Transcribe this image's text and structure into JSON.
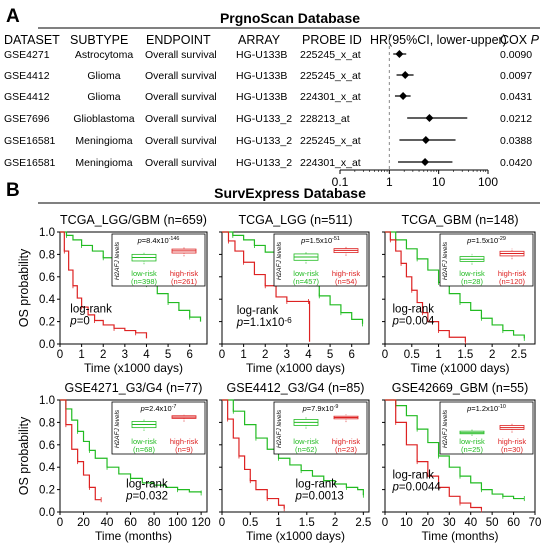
{
  "panel_a": {
    "letter": "A",
    "title": "PrgnoScan Database",
    "headers": [
      "DATASET",
      "SUBTYPE",
      "ENDPOINT",
      "ARRAY",
      "PROBE ID",
      "HR(95%CI, lower-upper)",
      "COX P"
    ],
    "rows": [
      {
        "dataset": "GSE4271",
        "subtype": "Astrocytoma",
        "endpoint": "Overall survival",
        "array": "HG-U133B",
        "probe": "225245_x_at",
        "p": "0.0090"
      },
      {
        "dataset": "GSE4412",
        "subtype": "Glioma",
        "endpoint": "Overall survival",
        "array": "HG-U133B",
        "probe": "225245_x_at",
        "p": "0.0097"
      },
      {
        "dataset": "GSE4412",
        "subtype": "Glioma",
        "endpoint": "Overall survival",
        "array": "HG-U133B",
        "probe": "224301_x_at",
        "p": "0.0431"
      },
      {
        "dataset": "GSE7696",
        "subtype": "Glioblastoma",
        "endpoint": "Overall survival",
        "array": "HG-U133_2",
        "probe": "228213_at",
        "p": "0.0212"
      },
      {
        "dataset": "GSE16581",
        "subtype": "Meningioma",
        "endpoint": "Overall survival",
        "array": "HG-U133_2",
        "probe": "225245_x_at",
        "p": "0.0388"
      },
      {
        "dataset": "GSE16581",
        "subtype": "Meningioma",
        "endpoint": "Overall survival",
        "array": "HG-U133_2",
        "probe": "224301_x_at",
        "p": "0.0420"
      }
    ]
  },
  "panel_b": {
    "letter": "B",
    "title": "SurvExpress Database",
    "ylabel": "OS probability",
    "inset_ylabel": "H2AFJ levels",
    "low_label": "low-risk",
    "high_label": "high-risk",
    "logrank_label": "log-rank",
    "colors": {
      "low": "#22bb22",
      "high": "#dd2222"
    }
  },
  "chart_data": [
    {
      "type": "scatter",
      "subtype": "forest",
      "xscale": "log",
      "xlim": [
        0.1,
        100
      ],
      "xticks": [
        0.1,
        1,
        10,
        100
      ],
      "tick_labels": [
        "0.1",
        "1",
        "10",
        "100"
      ],
      "reference_line": 1,
      "hr": [
        1.6,
        2.1,
        1.9,
        6.5,
        5.5,
        5.3
      ],
      "ci_lower": [
        1.2,
        1.4,
        1.3,
        2.3,
        1.6,
        1.5
      ],
      "ci_upper": [
        2.2,
        3.1,
        2.7,
        38,
        22,
        19
      ]
    },
    {
      "type": "line",
      "title": "TCGA_LGG/GBM (n=659)",
      "xlabel": "Time (x1000 days)",
      "xlim": [
        0,
        6.8
      ],
      "xticks": [
        0,
        1,
        2,
        3,
        4,
        5,
        6
      ],
      "tick_labels": [
        "0",
        "1",
        "2",
        "3",
        "4",
        "5",
        "6"
      ],
      "ylim": [
        0,
        1
      ],
      "yticks": [
        0,
        0.2,
        0.4,
        0.6,
        0.8,
        1
      ],
      "ytick_labels": [
        "0.0",
        "0.2",
        "0.4",
        "0.6",
        "0.8",
        "1.0"
      ],
      "pvalue": "p=0",
      "series": [
        {
          "risk": "low",
          "x": [
            0,
            0.3,
            0.6,
            1,
            1.5,
            2,
            2.5,
            3,
            3.5,
            4,
            4.5,
            5,
            5.5,
            6,
            6.5
          ],
          "y": [
            1,
            0.97,
            0.93,
            0.88,
            0.83,
            0.77,
            0.72,
            0.66,
            0.6,
            0.53,
            0.45,
            0.37,
            0.3,
            0.24,
            0.2
          ]
        },
        {
          "risk": "high",
          "x": [
            0,
            0.2,
            0.4,
            0.6,
            0.8,
            1,
            1.3,
            1.6,
            2,
            2.5,
            3,
            3.5,
            4
          ],
          "y": [
            1,
            0.83,
            0.66,
            0.52,
            0.41,
            0.33,
            0.26,
            0.21,
            0.17,
            0.14,
            0.12,
            0.1,
            0.05
          ]
        }
      ],
      "inset": {
        "pvalue": "p=8.4x10-146",
        "low_n": "(n=398)",
        "high_n": "(n=261)",
        "low_q": [
          0.32,
          0.48,
          0.62
        ],
        "high_q": [
          0.68,
          0.78,
          0.86
        ]
      }
    },
    {
      "type": "line",
      "title": "TCGA_LGG (n=511)",
      "xlabel": "Time (x1000 days)",
      "xlim": [
        0,
        6.8
      ],
      "xticks": [
        0,
        1,
        2,
        3,
        4,
        5,
        6
      ],
      "tick_labels": [
        "0",
        "1",
        "2",
        "3",
        "4",
        "5",
        "6"
      ],
      "ylim": [
        0,
        1
      ],
      "yticks": [
        0,
        0.2,
        0.4,
        0.6,
        0.8,
        1
      ],
      "ytick_labels": [
        "0.0",
        "0.2",
        "0.4",
        "0.6",
        "0.8",
        "1.0"
      ],
      "pvalue": "p=1.1x10-6",
      "series": [
        {
          "risk": "low",
          "x": [
            0,
            0.5,
            1,
            1.5,
            2,
            2.5,
            3,
            3.5,
            4,
            4.5,
            5,
            5.5,
            6,
            6.5
          ],
          "y": [
            1,
            0.97,
            0.93,
            0.88,
            0.82,
            0.76,
            0.68,
            0.6,
            0.52,
            0.43,
            0.35,
            0.28,
            0.22,
            0.18
          ]
        },
        {
          "risk": "high",
          "x": [
            0,
            0.3,
            0.6,
            1,
            1.5,
            2,
            2.5,
            3,
            3.5,
            4,
            4.05
          ],
          "y": [
            1,
            0.92,
            0.83,
            0.73,
            0.62,
            0.52,
            0.42,
            0.38,
            0.38,
            0.38,
            0.02
          ]
        }
      ],
      "inset": {
        "pvalue": "p=1.5x10-51",
        "low_n": "(n=457)",
        "high_n": "(n=54)",
        "low_q": [
          0.35,
          0.5,
          0.64
        ],
        "high_q": [
          0.7,
          0.8,
          0.88
        ]
      }
    },
    {
      "type": "line",
      "title": "TCGA_GBM (n=148)",
      "xlabel": "Time (x1000 days)",
      "xlim": [
        0,
        2.8
      ],
      "xticks": [
        0,
        0.5,
        1,
        1.5,
        2,
        2.5
      ],
      "tick_labels": [
        "0",
        "0.5",
        "1",
        "1.5",
        "2",
        "2.5"
      ],
      "ylim": [
        0,
        1
      ],
      "yticks": [
        0,
        0.2,
        0.4,
        0.6,
        0.8,
        1
      ],
      "ytick_labels": [
        "0.0",
        "0.2",
        "0.4",
        "0.6",
        "0.8",
        "1.0"
      ],
      "pvalue": "p=0.004",
      "series": [
        {
          "risk": "low",
          "x": [
            0,
            0.2,
            0.4,
            0.6,
            0.8,
            1,
            1.2,
            1.4,
            1.6,
            1.8,
            2,
            2.2,
            2.4,
            2.6
          ],
          "y": [
            1,
            0.93,
            0.85,
            0.76,
            0.66,
            0.55,
            0.45,
            0.37,
            0.3,
            0.23,
            0.17,
            0.12,
            0.08,
            0.05
          ]
        },
        {
          "risk": "high",
          "x": [
            0,
            0.1,
            0.2,
            0.3,
            0.4,
            0.5,
            0.6,
            0.7,
            0.8,
            1,
            1.2,
            1.5
          ],
          "y": [
            1,
            0.93,
            0.83,
            0.72,
            0.6,
            0.48,
            0.37,
            0.28,
            0.2,
            0.12,
            0.06,
            0.02
          ]
        }
      ],
      "inset": {
        "pvalue": "p=1.5x10-29",
        "low_n": "(n=28)",
        "high_n": "(n=120)",
        "low_q": [
          0.3,
          0.4,
          0.52
        ],
        "high_q": [
          0.55,
          0.66,
          0.76
        ]
      }
    },
    {
      "type": "line",
      "title": "GSE4271_G3/G4 (n=77)",
      "xlabel": "Time (months)",
      "xlim": [
        0,
        125
      ],
      "xticks": [
        0,
        20,
        40,
        60,
        80,
        100,
        120
      ],
      "tick_labels": [
        "0",
        "20",
        "40",
        "60",
        "80",
        "100",
        "120"
      ],
      "ylim": [
        0,
        1
      ],
      "yticks": [
        0,
        0.2,
        0.4,
        0.6,
        0.8,
        1
      ],
      "ytick_labels": [
        "0.0",
        "0.2",
        "0.4",
        "0.6",
        "0.8",
        "1.0"
      ],
      "pvalue": "p=0.032",
      "series": [
        {
          "risk": "low",
          "x": [
            0,
            5,
            10,
            15,
            20,
            25,
            30,
            40,
            50,
            60,
            70,
            80,
            90,
            100,
            110,
            120
          ],
          "y": [
            1,
            0.92,
            0.82,
            0.72,
            0.63,
            0.55,
            0.48,
            0.4,
            0.34,
            0.3,
            0.26,
            0.24,
            0.22,
            0.2,
            0.18,
            0.17
          ]
        },
        {
          "risk": "high",
          "x": [
            0,
            5,
            10,
            15,
            20,
            25,
            30,
            35
          ],
          "y": [
            1,
            0.78,
            0.56,
            0.45,
            0.33,
            0.22,
            0.11,
            0.11
          ]
        }
      ],
      "inset": {
        "pvalue": "p=2.4x10-7",
        "low_n": "(n=68)",
        "high_n": "(n=9)",
        "low_q": [
          0.38,
          0.52,
          0.66
        ],
        "high_q": [
          0.8,
          0.86,
          0.92
        ]
      }
    },
    {
      "type": "line",
      "title": "GSE4412_G3/G4 (n=85)",
      "xlabel": "Time (x1000 days)",
      "xlim": [
        0,
        2.6
      ],
      "xticks": [
        0,
        0.5,
        1,
        1.5,
        2,
        2.5
      ],
      "tick_labels": [
        "0",
        "0.5",
        "1",
        "1.5",
        "2",
        "2.5"
      ],
      "ylim": [
        0,
        1
      ],
      "yticks": [
        0,
        0.2,
        0.4,
        0.6,
        0.8,
        1
      ],
      "ytick_labels": [
        "0.0",
        "0.2",
        "0.4",
        "0.6",
        "0.8",
        "1.0"
      ],
      "pvalue": "p=0.0013",
      "series": [
        {
          "risk": "low",
          "x": [
            0,
            0.2,
            0.4,
            0.6,
            0.8,
            1,
            1.2,
            1.4,
            1.6,
            1.8,
            2,
            2.2,
            2.4,
            2.5
          ],
          "y": [
            1,
            0.9,
            0.78,
            0.66,
            0.56,
            0.48,
            0.42,
            0.37,
            0.32,
            0.28,
            0.25,
            0.22,
            0.2,
            0.15
          ]
        },
        {
          "risk": "high",
          "x": [
            0,
            0.1,
            0.2,
            0.3,
            0.4,
            0.5,
            0.6,
            0.8,
            1,
            1.1
          ],
          "y": [
            1,
            0.83,
            0.66,
            0.5,
            0.38,
            0.28,
            0.2,
            0.12,
            0.06,
            0.03
          ]
        }
      ],
      "inset": {
        "pvalue": "p=7.9x10-9",
        "low_n": "(n=62)",
        "high_n": "(n=23)",
        "low_q": [
          0.48,
          0.62,
          0.75
        ],
        "high_q": [
          0.78,
          0.84,
          0.9
        ]
      }
    },
    {
      "type": "line",
      "title": "GSE42669_GBM (n=55)",
      "xlabel": "Time (months)",
      "xlim": [
        0,
        70
      ],
      "xticks": [
        0,
        10,
        20,
        30,
        40,
        50,
        60,
        70
      ],
      "tick_labels": [
        "0",
        "10",
        "20",
        "30",
        "40",
        "50",
        "60",
        "70"
      ],
      "ylim": [
        0,
        1
      ],
      "yticks": [
        0,
        0.2,
        0.4,
        0.6,
        0.8,
        1
      ],
      "ytick_labels": [
        "0.0",
        "0.2",
        "0.4",
        "0.6",
        "0.8",
        "1.0"
      ],
      "pvalue": "p=0.0044",
      "series": [
        {
          "risk": "low",
          "x": [
            0,
            5,
            10,
            15,
            20,
            25,
            30,
            35,
            40,
            45,
            50,
            55,
            60,
            65
          ],
          "y": [
            1,
            0.95,
            0.86,
            0.74,
            0.62,
            0.5,
            0.4,
            0.32,
            0.26,
            0.2,
            0.16,
            0.14,
            0.12,
            0.12
          ]
        },
        {
          "risk": "high",
          "x": [
            0,
            5,
            10,
            15,
            20,
            25,
            30,
            35,
            40,
            45
          ],
          "y": [
            1,
            0.8,
            0.6,
            0.45,
            0.32,
            0.22,
            0.14,
            0.08,
            0.04,
            0.02
          ]
        }
      ],
      "inset": {
        "pvalue": "p=1.2x10-10",
        "low_n": "(n=25)",
        "high_n": "(n=30)",
        "low_q": [
          0.1,
          0.15,
          0.22
        ],
        "high_q": [
          0.3,
          0.38,
          0.48
        ]
      }
    }
  ]
}
